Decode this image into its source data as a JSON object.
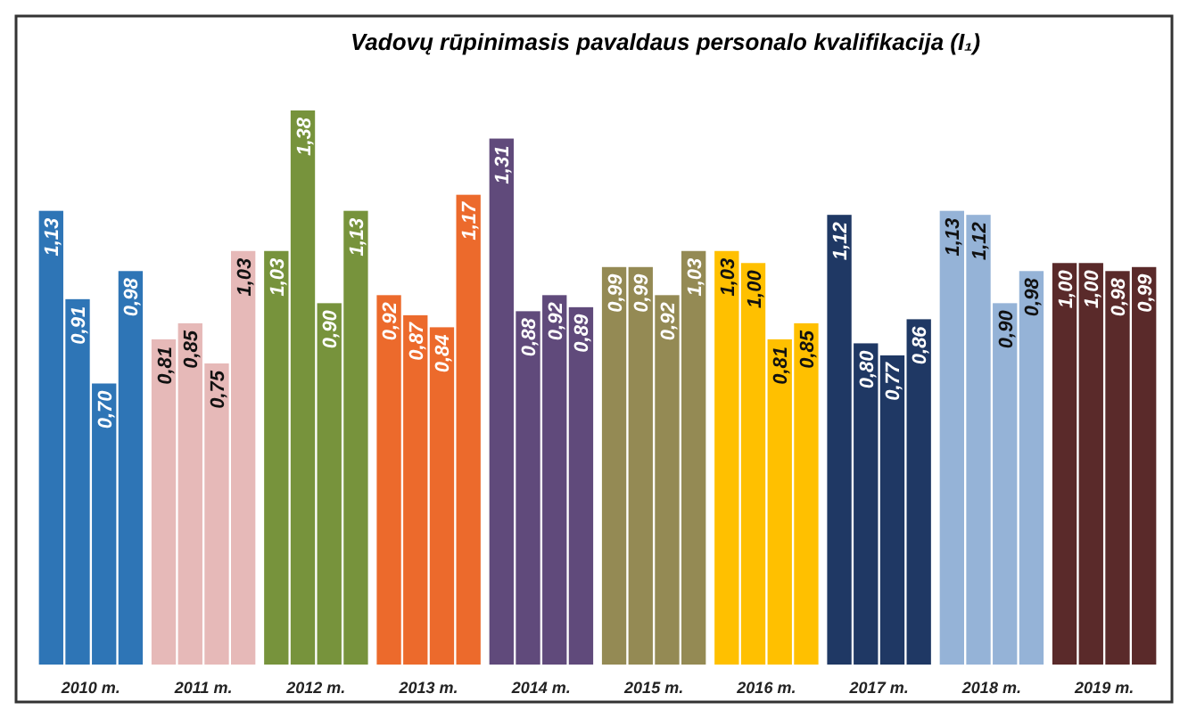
{
  "chart_data": {
    "type": "bar",
    "title": "Vadovų rūpinimasis pavaldaus personalo kvalifikacija (I₁)",
    "categories": [
      "2010 m.",
      "2011 m.",
      "2012 m.",
      "2013 m.",
      "2014 m.",
      "2015 m.",
      "2016 m.",
      "2017 m.",
      "2018 m.",
      "2019 m."
    ],
    "series": [
      {
        "colors": [
          "#2e75b6",
          "#e6b9b8",
          "#77933c",
          "#ec6a2c",
          "#604a7b",
          "#948a54",
          "#ffc000",
          "#1f3864",
          "#95b3d7",
          "#5a2a2a"
        ],
        "values": [
          1.13,
          0.81,
          1.03,
          0.92,
          1.31,
          0.99,
          1.03,
          1.12,
          1.13,
          1.0
        ],
        "value_labels": [
          "1,13",
          "0,81",
          "1,03",
          "0,92",
          "1,31",
          "0,99",
          "1,03",
          "1,12",
          "1,13",
          "1,00"
        ]
      },
      {
        "colors": [
          "#2e75b6",
          "#e6b9b8",
          "#77933c",
          "#ec6a2c",
          "#604a7b",
          "#948a54",
          "#ffc000",
          "#1f3864",
          "#95b3d7",
          "#5a2a2a"
        ],
        "values": [
          0.91,
          0.85,
          1.38,
          0.87,
          0.88,
          0.99,
          1.0,
          0.8,
          1.12,
          1.0
        ],
        "value_labels": [
          "0,91",
          "0,85",
          "1,38",
          "0,87",
          "0,88",
          "0,99",
          "1,00",
          "0,80",
          "1,12",
          "1,00"
        ]
      },
      {
        "colors": [
          "#2e75b6",
          "#e6b9b8",
          "#77933c",
          "#ec6a2c",
          "#604a7b",
          "#948a54",
          "#ffc000",
          "#1f3864",
          "#95b3d7",
          "#5a2a2a"
        ],
        "values": [
          0.7,
          0.75,
          0.9,
          0.84,
          0.92,
          0.92,
          0.81,
          0.77,
          0.9,
          0.98
        ],
        "value_labels": [
          "0,70",
          "0,75",
          "0,90",
          "0,84",
          "0,92",
          "0,92",
          "0,81",
          "0,77",
          "0,90",
          "0,98"
        ]
      },
      {
        "colors": [
          "#2e75b6",
          "#e6b9b8",
          "#77933c",
          "#ec6a2c",
          "#604a7b",
          "#948a54",
          "#ffc000",
          "#1f3864",
          "#95b3d7",
          "#5a2a2a"
        ],
        "values": [
          0.98,
          1.03,
          1.13,
          1.17,
          0.89,
          1.03,
          0.85,
          0.86,
          0.98,
          0.99
        ],
        "value_labels": [
          "0,98",
          "1,03",
          "1,13",
          "1,17",
          "0,89",
          "1,03",
          "0,85",
          "0,86",
          "0,98",
          "0,99"
        ]
      }
    ]
  }
}
